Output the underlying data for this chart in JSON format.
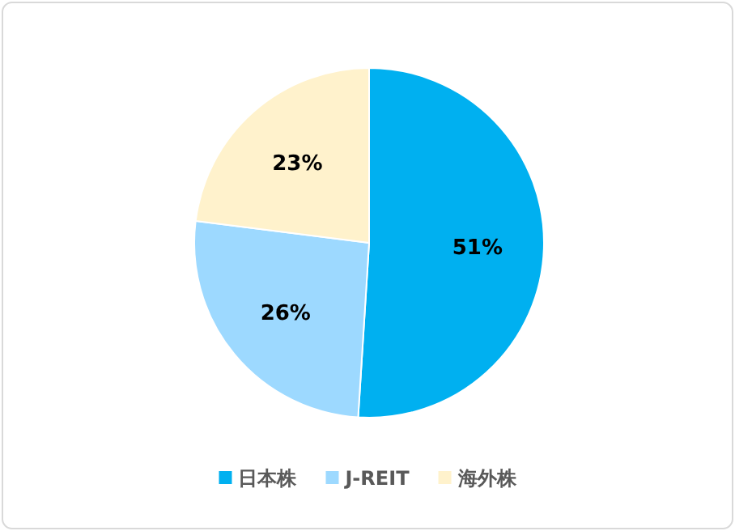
{
  "chart_data": {
    "type": "pie",
    "categories": [
      "日本株",
      "J-REIT",
      "海外株"
    ],
    "values": [
      51,
      26,
      23
    ],
    "value_labels": [
      "51%",
      "26%",
      "23%"
    ],
    "colors": [
      "#00b0f0",
      "#9dd9ff",
      "#fff2cc"
    ],
    "legend": "bottom"
  }
}
